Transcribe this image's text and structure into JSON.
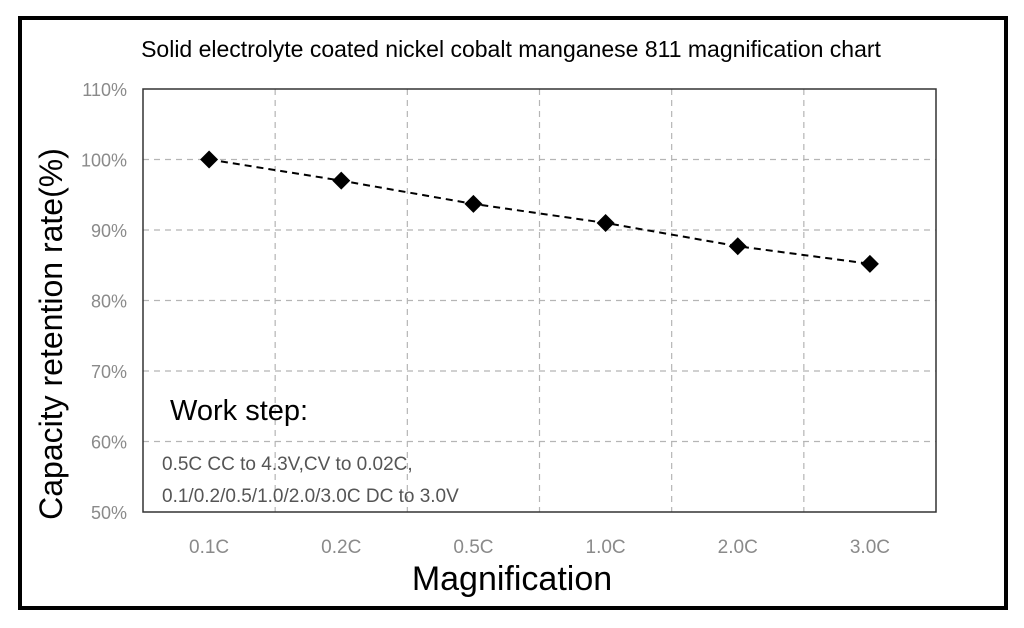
{
  "chart_data": {
    "type": "line",
    "title": "Solid electrolyte coated nickel cobalt manganese 811 magnification chart",
    "xlabel": "Magnification",
    "ylabel": "Capacity retention rate(%)",
    "categories": [
      "0.1C",
      "0.2C",
      "0.5C",
      "1.0C",
      "2.0C",
      "3.0C"
    ],
    "series": [
      {
        "values": [
          100,
          97,
          93.7,
          91,
          87.7,
          85.2
        ]
      }
    ],
    "ylim": [
      50,
      110
    ],
    "yticks": [
      50,
      60,
      70,
      80,
      90,
      100,
      110
    ],
    "ytick_labels": [
      "50%",
      "60%",
      "70%",
      "80%",
      "90%",
      "100%",
      "110%"
    ],
    "grid": true,
    "line_style": "dashed",
    "marker": "diamond",
    "series_color": "#000000",
    "annotation": {
      "heading": "Work step:",
      "lines": [
        "0.5C CC to 4.3V,CV to 0.02C,",
        "0.1/0.2/0.5/1.0/2.0/3.0C DC to 3.0V"
      ]
    }
  }
}
